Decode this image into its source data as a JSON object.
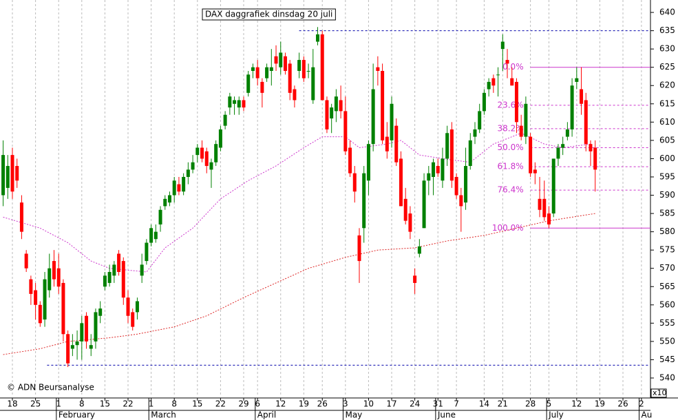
{
  "chart_data": {
    "type": "candlestick",
    "title": "DAX daggrafiek dinsdag 20 juli",
    "copyright": "© ADN Beursanalyse",
    "scale_note": "x10",
    "up_color": "#008000",
    "down_color": "#ff0000",
    "xlim": [
      -2.68,
      137.95
    ],
    "ylim": [
      535.1,
      643.4
    ],
    "yticks": [
      540,
      545,
      550,
      555,
      560,
      565,
      570,
      575,
      580,
      585,
      590,
      595,
      600,
      605,
      610,
      615,
      620,
      625,
      630,
      635,
      640
    ],
    "xticks": [
      {
        "value": 0,
        "label": "18"
      },
      {
        "value": 5,
        "label": "25"
      },
      {
        "value": 10,
        "label": "1"
      },
      {
        "value": 15,
        "label": "8"
      },
      {
        "value": 20,
        "label": "15"
      },
      {
        "value": 25,
        "label": "22"
      },
      {
        "value": 30,
        "label": "1"
      },
      {
        "value": 35,
        "label": "8"
      },
      {
        "value": 40,
        "label": "15"
      },
      {
        "value": 45,
        "label": "22"
      },
      {
        "value": 50,
        "label": "29"
      },
      {
        "value": 53,
        "label": "6"
      },
      {
        "value": 58,
        "label": "12"
      },
      {
        "value": 63,
        "label": "19"
      },
      {
        "value": 67,
        "label": "26"
      },
      {
        "value": 72,
        "label": "3"
      },
      {
        "value": 77,
        "label": "10"
      },
      {
        "value": 82,
        "label": "17"
      },
      {
        "value": 87,
        "label": "24"
      },
      {
        "value": 92,
        "label": "31"
      },
      {
        "value": 96,
        "label": "7"
      },
      {
        "value": 102,
        "label": "14"
      },
      {
        "value": 106,
        "label": "21"
      },
      {
        "value": 112,
        "label": "28"
      },
      {
        "value": 116,
        "label": "5"
      },
      {
        "value": 122,
        "label": "12"
      },
      {
        "value": 127,
        "label": "19"
      },
      {
        "value": 132,
        "label": "26"
      },
      {
        "value": 136,
        "label": "2"
      }
    ],
    "months": [
      {
        "value": 10,
        "label": "February"
      },
      {
        "value": 30,
        "label": "March"
      },
      {
        "value": 53,
        "label": "April"
      },
      {
        "value": 72,
        "label": "May"
      },
      {
        "value": 92,
        "label": "June"
      },
      {
        "value": 116,
        "label": "July"
      },
      {
        "value": 136,
        "label": "Au"
      }
    ],
    "grid": true,
    "x": [
      -2,
      -1,
      0,
      1,
      2,
      3,
      4,
      5,
      6,
      7,
      8,
      9,
      10,
      11,
      12,
      13,
      14,
      15,
      16,
      17,
      18,
      19,
      20,
      21,
      22,
      23,
      24,
      25,
      26,
      27,
      28,
      29,
      30,
      31,
      32,
      33,
      34,
      35,
      36,
      37,
      38,
      39,
      40,
      41,
      42,
      43,
      44,
      45,
      46,
      47,
      48,
      49,
      50,
      51,
      52,
      53,
      54,
      55,
      56,
      57,
      58,
      59,
      60,
      61,
      62,
      63,
      64,
      65,
      66,
      67,
      68,
      69,
      70,
      71,
      72,
      73,
      74,
      75,
      76,
      77,
      78,
      79,
      80,
      81,
      82,
      83,
      84,
      85,
      86,
      87,
      88,
      89,
      90,
      91,
      92,
      93,
      94,
      95,
      96,
      97,
      98,
      99,
      100,
      101,
      102,
      103,
      104,
      105,
      106,
      107,
      108,
      109,
      110,
      111,
      112,
      113,
      114,
      115,
      116,
      117,
      118,
      119,
      120,
      121,
      122,
      123,
      124,
      125,
      126
    ],
    "open": [
      590,
      592,
      601,
      598,
      588,
      574,
      567,
      564,
      560,
      556,
      564,
      572,
      570,
      566,
      552,
      548,
      549,
      550,
      557,
      548,
      550,
      557,
      565,
      566,
      568,
      574,
      572,
      562,
      558,
      558,
      568,
      572,
      577,
      578,
      582,
      587,
      588,
      590,
      593,
      591,
      595,
      597,
      601,
      603,
      602,
      597,
      599,
      603,
      609,
      614,
      615,
      614,
      616,
      618,
      624,
      625,
      621,
      622,
      624,
      628,
      625,
      628,
      626,
      619,
      624,
      627,
      624,
      616,
      632,
      634,
      616,
      611,
      613,
      616,
      613,
      603,
      596,
      579,
      581,
      594,
      604,
      625,
      624,
      606,
      605,
      609,
      600,
      589,
      585,
      568,
      574,
      581,
      594,
      595,
      598,
      594,
      600,
      608,
      595,
      590,
      588,
      598,
      606,
      608,
      613,
      619,
      622,
      623,
      630,
      627,
      622,
      621,
      609,
      606,
      606,
      597,
      589,
      589,
      585,
      585,
      600,
      603,
      606,
      608,
      621,
      619,
      616,
      604,
      603
    ],
    "high": [
      605,
      601,
      603,
      600,
      590,
      575,
      568,
      566,
      561,
      569,
      574,
      575,
      574,
      567,
      553,
      552,
      553,
      557,
      558,
      552,
      559,
      561,
      569,
      571,
      572,
      575,
      573,
      564,
      559,
      562,
      574,
      578,
      582,
      582,
      587,
      590,
      591,
      595,
      595,
      596,
      599,
      601,
      604,
      605,
      603,
      600,
      605,
      609,
      613,
      618,
      617,
      617,
      617,
      624,
      626,
      627,
      622,
      626,
      630,
      631,
      632,
      629,
      627,
      620,
      629,
      628,
      626,
      630,
      636,
      635,
      617,
      615,
      619,
      620,
      617,
      605,
      598,
      581,
      598,
      605,
      626,
      628,
      626,
      610,
      617,
      611,
      602,
      592,
      587,
      570,
      578,
      596,
      598,
      600,
      600,
      603,
      609,
      610,
      596,
      592,
      603,
      607,
      610,
      615,
      619,
      622,
      623,
      625,
      634,
      630,
      625,
      622,
      612,
      617,
      607,
      599,
      595,
      594,
      587,
      600,
      604,
      606,
      610,
      622,
      625,
      625,
      618,
      605,
      605
    ],
    "low": [
      587,
      589,
      589,
      592,
      578,
      569,
      560,
      556,
      554,
      554,
      562,
      565,
      563,
      550,
      543,
      546,
      545,
      545,
      548,
      546,
      548,
      555,
      564,
      565,
      566,
      568,
      560,
      555,
      553,
      556,
      566,
      571,
      576,
      577,
      580,
      586,
      587,
      588,
      590,
      590,
      593,
      596,
      599,
      599,
      596,
      592,
      598,
      602,
      608,
      612,
      612,
      612,
      613,
      617,
      622,
      620,
      614,
      621,
      620,
      624,
      623,
      623,
      616,
      614,
      622,
      621,
      622,
      615,
      631,
      616,
      607,
      607,
      610,
      611,
      601,
      595,
      588,
      566,
      577,
      590,
      602,
      620,
      604,
      600,
      603,
      598,
      587,
      582,
      578,
      563,
      573,
      581,
      590,
      590,
      595,
      592,
      598,
      592,
      589,
      580,
      586,
      597,
      604,
      607,
      612,
      617,
      618,
      617,
      624,
      622,
      620,
      607,
      605,
      604,
      595,
      593,
      584,
      583,
      581,
      584,
      598,
      601,
      605,
      606,
      619,
      612,
      602,
      598,
      591
    ],
    "close": [
      601,
      598,
      591,
      594,
      580,
      570,
      563,
      560,
      555,
      567,
      570,
      567,
      565,
      552,
      544,
      549,
      550,
      555,
      550,
      549,
      558,
      559,
      568,
      569,
      571,
      569,
      562,
      557,
      554,
      561,
      571,
      577,
      581,
      580,
      586,
      589,
      590,
      594,
      591,
      595,
      597,
      599,
      603,
      600,
      598,
      599,
      604,
      608,
      612,
      617,
      616,
      616,
      614,
      623,
      625,
      622,
      618,
      625,
      625,
      626,
      629,
      624,
      618,
      616,
      627,
      622,
      624,
      625,
      634,
      616,
      608,
      614,
      617,
      613,
      602,
      596,
      591,
      572,
      596,
      604,
      619,
      624,
      605,
      602,
      615,
      599,
      587,
      583,
      580,
      566,
      576,
      594,
      596,
      599,
      596,
      600,
      607,
      594,
      590,
      587,
      598,
      605,
      608,
      613,
      618,
      621,
      620,
      623,
      632,
      626,
      620,
      610,
      606,
      615,
      596,
      596,
      586,
      584,
      582,
      600,
      603,
      604,
      608,
      620,
      622,
      615,
      604,
      602,
      597
    ],
    "moving_averages": [
      {
        "color": "#cc33cc",
        "x": [
          -2,
          6,
          12,
          17,
          21,
          29,
          33,
          39,
          45,
          51,
          57,
          63,
          67,
          72,
          75,
          81,
          84,
          88,
          93,
          99,
          104,
          110,
          115,
          119,
          125
        ],
        "values": [
          584,
          581,
          577,
          572,
          570,
          569,
          575.6,
          581,
          589,
          594,
          598,
          603,
          606,
          606,
          603,
          604,
          605,
          601,
          600,
          599,
          604,
          607,
          604,
          603,
          604
        ]
      },
      {
        "color": "#dd2222",
        "x": [
          -2,
          6,
          12,
          21,
          27,
          35,
          42,
          50,
          57,
          64,
          72,
          79,
          87,
          94,
          102,
          109,
          116,
          126
        ],
        "values": [
          546.4,
          548,
          550,
          551,
          552,
          554,
          557,
          562,
          566,
          570,
          573,
          575,
          575.6,
          577.5,
          579,
          581,
          583,
          585
        ]
      }
    ],
    "hlines": [
      {
        "value": 635,
        "from": 62,
        "color": "#0000aa"
      },
      {
        "value": 543.5,
        "from": 7.5,
        "color": "#0000aa"
      }
    ],
    "fibonacci": {
      "from": 112,
      "color": "#cc33cc",
      "levels": [
        {
          "label": "0.0%",
          "value": 625,
          "solid": true
        },
        {
          "label": "23.6%",
          "value": 614.6,
          "solid": false
        },
        {
          "label": "38.2%",
          "value": 608.2,
          "solid": false
        },
        {
          "label": "50.0%",
          "value": 603,
          "solid": false
        },
        {
          "label": "61.8%",
          "value": 597.8,
          "solid": false
        },
        {
          "label": "76.4%",
          "value": 591.4,
          "solid": false
        },
        {
          "label": "100.0%",
          "value": 581,
          "solid": true
        }
      ]
    }
  }
}
